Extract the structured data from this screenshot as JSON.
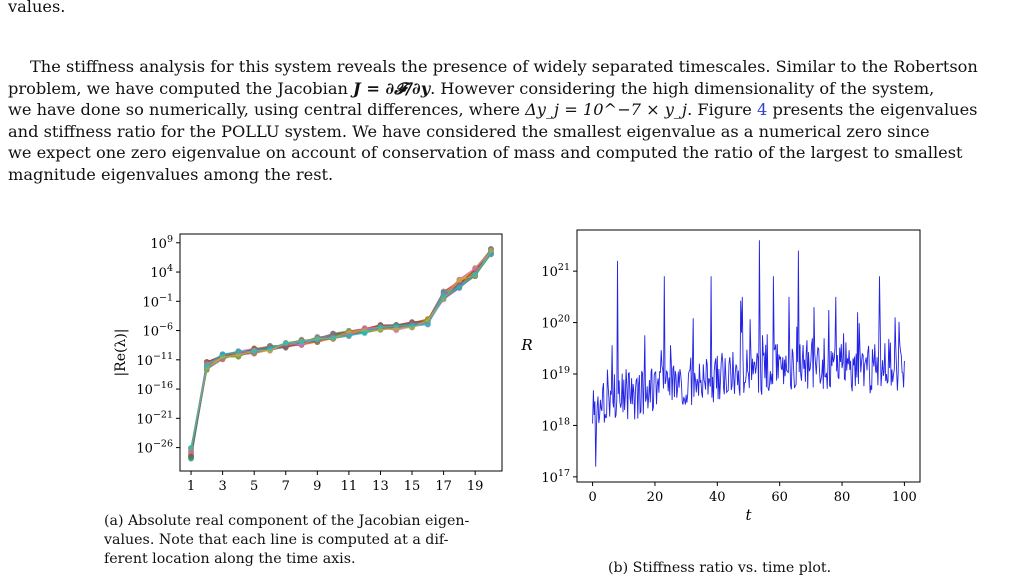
{
  "text": {
    "line_top": "values.",
    "para_stiffness": {
      "l1": "The stiffness analysis for this system reveals the presence of widely separated timescales. Similar to the Robertson",
      "l2a": "problem, we have computed the Jacobian ",
      "l2b": ". However considering the high dimensionality of the system,",
      "l3a": "we have done so numerically, using central differences, where ",
      "l3b": ". Figure ",
      "l3ref": "4",
      "l3c": " presents the eigenvalues",
      "l4": "and stiffness ratio for the POLLU system. We have considered the smallest eigenvalue as a numerical zero since",
      "l5": "we expect one zero eigenvalue on account of conservation of mass and computed the ratio of the largest to smallest",
      "l6": "magnitude eigenvalues among the rest."
    },
    "eq_jacobian": "J = ∂𝓕/∂y",
    "eq_delta": "Δy_j = 10^−7 × y_j"
  },
  "captions": {
    "a_l1": "(a) Absolute real component of the Jacobian eigen-",
    "a_l2": "values. Note that each line is computed at a dif-",
    "a_l3": "ferent location along the time axis.",
    "b": "(b) Stiffness ratio vs. time plot."
  },
  "chart_data": [
    {
      "type": "line",
      "ylabel": "|Re(λ)|",
      "xlabel": "",
      "y_scale": "log",
      "x_ticks": [
        1,
        3,
        5,
        7,
        9,
        11,
        13,
        15,
        17,
        19
      ],
      "x_tick_labels": [
        "1",
        "3",
        "5",
        "7",
        "9",
        "11",
        "13",
        "15",
        "17",
        "19"
      ],
      "y_ticks_exp": [
        9,
        4,
        -1,
        -6,
        -11,
        -16,
        -21,
        -26
      ],
      "y_tick_labels": [
        "10^9",
        "10^4",
        "10^−1",
        "10^−6",
        "10^−11",
        "10^−16",
        "10^−21",
        "10^−26"
      ],
      "xlim": [
        0.3,
        20.7
      ],
      "ylim_exp": [
        -30,
        10.5
      ],
      "x": [
        1,
        2,
        3,
        4,
        5,
        6,
        7,
        8,
        9,
        10,
        11,
        12,
        13,
        14,
        15,
        16,
        17,
        18,
        19,
        20
      ],
      "median_log10": [
        -27,
        -12,
        -10.5,
        -10,
        -9.5,
        -9,
        -8.5,
        -8,
        -7.5,
        -7,
        -6.5,
        -6,
        -5.5,
        -5.5,
        -5,
        -4.5,
        0,
        2,
        4,
        7.5
      ],
      "spread_log10": [
        2,
        1.5,
        1,
        1,
        1,
        1,
        1,
        1,
        1,
        1,
        1,
        1,
        1,
        1,
        1,
        1,
        1.5,
        1.5,
        1.5,
        1
      ],
      "series_count": 30
    },
    {
      "type": "line",
      "xlabel": "t",
      "ylabel": "R",
      "y_scale": "log",
      "x_ticks": [
        0,
        20,
        40,
        60,
        80,
        100
      ],
      "y_ticks_exp": [
        17,
        18,
        19,
        20,
        21
      ],
      "y_tick_labels": [
        "10^17",
        "10^18",
        "10^19",
        "10^20",
        "10^21"
      ],
      "xlim": [
        -5,
        105
      ],
      "ylim_exp": [
        16.9,
        21.8
      ],
      "line_color": "#2323e6",
      "x": [
        0,
        5,
        10,
        15,
        20,
        25,
        30,
        35,
        40,
        45,
        50,
        55,
        60,
        65,
        70,
        75,
        80,
        85,
        90,
        95,
        100
      ],
      "baseline_log10": [
        18.3,
        18.5,
        18.6,
        18.6,
        18.7,
        18.8,
        18.8,
        18.9,
        18.9,
        19.0,
        19.0,
        19.1,
        19.1,
        19.1,
        19.2,
        19.2,
        19.2,
        19.1,
        19.1,
        19.2,
        19.1
      ],
      "peaks": [
        [
          1,
          17.2
        ],
        [
          8,
          21.2
        ],
        [
          23,
          20.9
        ],
        [
          38,
          20.9
        ],
        [
          48,
          20.5
        ],
        [
          53.5,
          21.6
        ],
        [
          58,
          20.9
        ],
        [
          63,
          20.5
        ],
        [
          66,
          21.4
        ],
        [
          71,
          20.3
        ],
        [
          78,
          20.5
        ],
        [
          85,
          20.2
        ],
        [
          92,
          20.9
        ],
        [
          97,
          20.1
        ]
      ]
    }
  ]
}
